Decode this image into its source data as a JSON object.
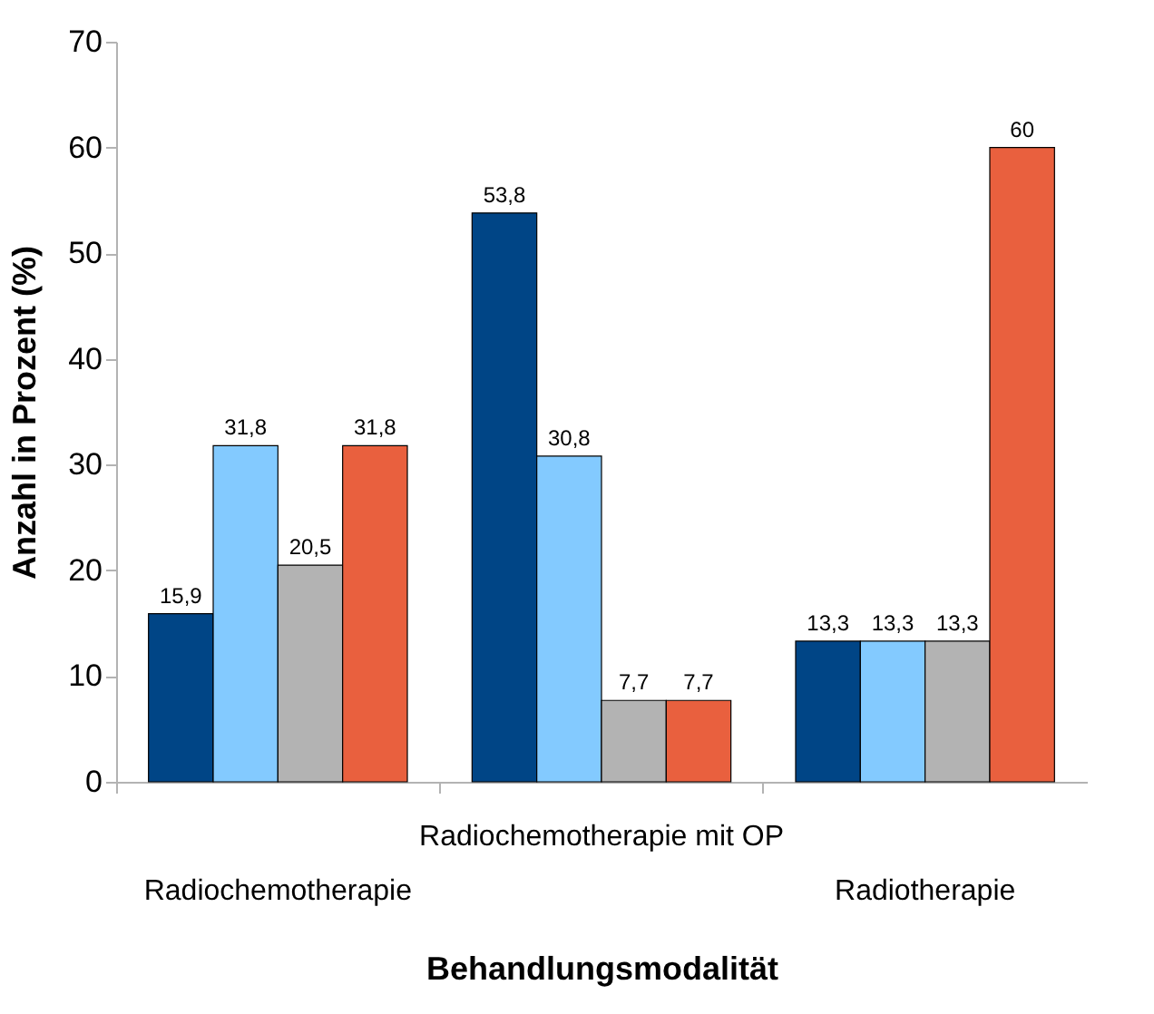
{
  "chart_data": {
    "type": "bar",
    "xlabel": "Behandlungsmodalität",
    "ylabel": "Anzahl in Prozent (%)",
    "categories": [
      "Radiochemotherapie",
      "Radiochemotherapie mit OP",
      "Radiotherapie"
    ],
    "ylim": [
      0,
      70
    ],
    "yticks": [
      0,
      10,
      20,
      30,
      40,
      50,
      60,
      70
    ],
    "grid": false,
    "legend": false,
    "series": [
      {
        "color": "#004586",
        "values": [
          15.9,
          53.8,
          13.3
        ],
        "value_labels": [
          "15,9",
          "53,8",
          "13,3"
        ]
      },
      {
        "color": "#83caff",
        "values": [
          31.8,
          30.8,
          13.3
        ],
        "value_labels": [
          "31,8",
          "30,8",
          "13,3"
        ]
      },
      {
        "color": "#b3b3b3",
        "values": [
          20.5,
          7.7,
          13.3
        ],
        "value_labels": [
          "20,5",
          "7,7",
          "13,3"
        ]
      },
      {
        "color": "#e9603e",
        "values": [
          31.8,
          7.7,
          60
        ],
        "value_labels": [
          "31,8",
          "7,7",
          "60"
        ]
      }
    ]
  }
}
